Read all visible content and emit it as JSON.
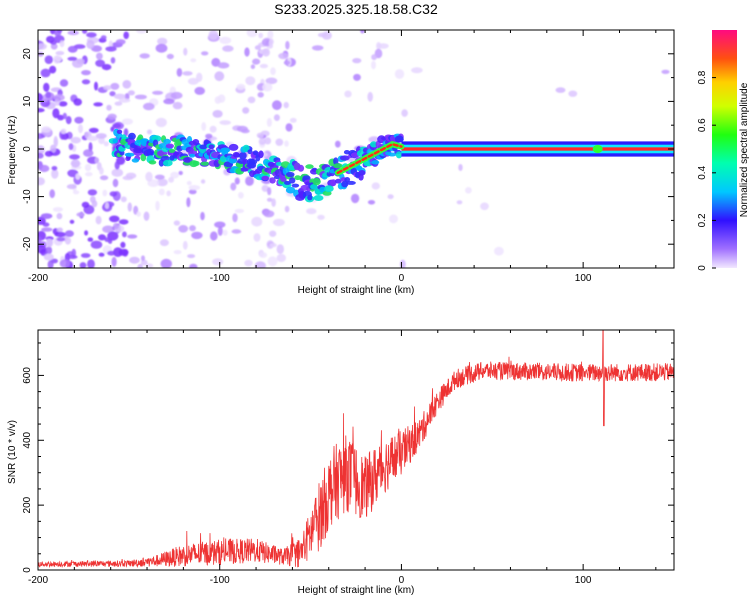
{
  "title": "S233.2025.325.18.58.C32",
  "chart_data": [
    {
      "type": "heatmap",
      "name": "spectrogram",
      "xlabel": "Height of straight line (km)",
      "ylabel": "Frequency (Hz)",
      "xlim": [
        -200,
        150
      ],
      "ylim": [
        -25,
        25
      ],
      "xticks": [
        -200,
        -100,
        0,
        100
      ],
      "yticks": [
        -20,
        -10,
        0,
        10,
        20
      ],
      "colorbar": {
        "label": "Normalized spectral amplitude",
        "range": [
          0,
          1
        ],
        "ticks": [
          0.0,
          0.2,
          0.4,
          0.6,
          0.8
        ]
      },
      "ridge": [
        {
          "x": -155,
          "y": 1
        },
        {
          "x": -140,
          "y": 0
        },
        {
          "x": -120,
          "y": -0.5
        },
        {
          "x": -100,
          "y": -1.5
        },
        {
          "x": -80,
          "y": -3
        },
        {
          "x": -65,
          "y": -5
        },
        {
          "x": -55,
          "y": -7
        },
        {
          "x": -45,
          "y": -7
        },
        {
          "x": -35,
          "y": -5
        },
        {
          "x": -25,
          "y": -3
        },
        {
          "x": -15,
          "y": -1
        },
        {
          "x": -5,
          "y": 1
        },
        {
          "x": 0,
          "y": 0.5
        },
        {
          "x": 20,
          "y": 0
        },
        {
          "x": 150,
          "y": 0
        }
      ]
    },
    {
      "type": "line",
      "name": "snr",
      "xlabel": "Height of straight line (km)",
      "ylabel": "SNR (10 * v/v)",
      "xlim": [
        -200,
        150
      ],
      "ylim": [
        0,
        740
      ],
      "xticks": [
        -200,
        -100,
        0,
        100
      ],
      "yticks": [
        0,
        200,
        400,
        600
      ],
      "color": "#ee3333",
      "envelope": [
        {
          "x": -200,
          "y": 18,
          "noise": 8
        },
        {
          "x": -150,
          "y": 20,
          "noise": 10
        },
        {
          "x": -135,
          "y": 28,
          "noise": 18
        },
        {
          "x": -120,
          "y": 45,
          "noise": 35
        },
        {
          "x": -100,
          "y": 55,
          "noise": 40
        },
        {
          "x": -80,
          "y": 60,
          "noise": 38
        },
        {
          "x": -65,
          "y": 40,
          "noise": 25
        },
        {
          "x": -55,
          "y": 55,
          "noise": 50
        },
        {
          "x": -45,
          "y": 170,
          "noise": 110
        },
        {
          "x": -38,
          "y": 260,
          "noise": 120
        },
        {
          "x": -30,
          "y": 300,
          "noise": 120
        },
        {
          "x": -20,
          "y": 250,
          "noise": 100
        },
        {
          "x": -10,
          "y": 320,
          "noise": 90
        },
        {
          "x": 0,
          "y": 360,
          "noise": 70
        },
        {
          "x": 10,
          "y": 420,
          "noise": 50
        },
        {
          "x": 20,
          "y": 520,
          "noise": 35
        },
        {
          "x": 30,
          "y": 590,
          "noise": 30
        },
        {
          "x": 45,
          "y": 615,
          "noise": 28
        },
        {
          "x": 100,
          "y": 608,
          "noise": 28
        },
        {
          "x": 150,
          "y": 610,
          "noise": 28
        }
      ],
      "spike": {
        "x": 111,
        "min": 445,
        "max": 740
      }
    }
  ]
}
